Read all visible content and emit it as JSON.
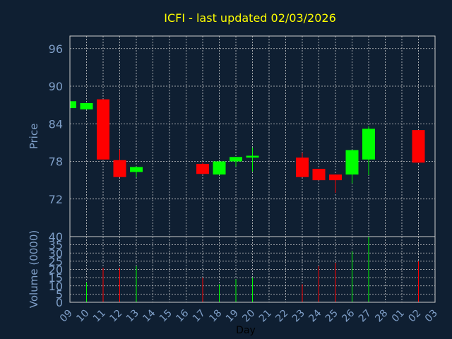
{
  "colors": {
    "background": "#0f1f32",
    "title": "#ffff00",
    "axis_text": "#7f9fc8",
    "frame": "#cccccc",
    "grid": "#cccccc",
    "up": "#00ff00",
    "down": "#ff0000",
    "day_label": "#000000"
  },
  "chart_data": [
    {
      "type": "candlestick",
      "title": "ICFI - last updated 02/03/2026",
      "xlabel": "Day",
      "ylabel": "Price",
      "ylim": [
        66,
        98
      ],
      "yticks": [
        96,
        90,
        84,
        78,
        72
      ],
      "grid": true,
      "x_tick_labels": [
        "09",
        "10",
        "11",
        "12",
        "13",
        "14",
        "15",
        "16",
        "17",
        "18",
        "19",
        "20",
        "21",
        "22",
        "23",
        "24",
        "25",
        "26",
        "27",
        "28",
        "01",
        "02",
        "03"
      ],
      "candles": [
        {
          "day": "09",
          "open": 86.5,
          "close": 87.6,
          "high": 87.6,
          "low": 86.5
        },
        {
          "day": "10",
          "open": 86.3,
          "close": 87.3,
          "high": 87.3,
          "low": 86.3
        },
        {
          "day": "11",
          "open": 87.9,
          "close": 78.3,
          "high": 87.9,
          "low": 78.3
        },
        {
          "day": "12",
          "open": 78.2,
          "close": 75.5,
          "high": 79.9,
          "low": 75.5
        },
        {
          "day": "13",
          "open": 76.3,
          "close": 77.1,
          "high": 77.2,
          "low": 75.5
        },
        {
          "day": "17",
          "open": 77.6,
          "close": 76.0,
          "high": 77.8,
          "low": 76.0
        },
        {
          "day": "18",
          "open": 75.9,
          "close": 78.0,
          "high": 78.0,
          "low": 75.9
        },
        {
          "day": "19",
          "open": 78.0,
          "close": 78.7,
          "high": 78.7,
          "low": 77.2
        },
        {
          "day": "20",
          "open": 78.6,
          "close": 78.9,
          "high": 80.2,
          "low": 76.4
        },
        {
          "day": "23",
          "open": 78.6,
          "close": 75.5,
          "high": 79.4,
          "low": 75.5
        },
        {
          "day": "24",
          "open": 76.8,
          "close": 75.0,
          "high": 76.8,
          "low": 75.0
        },
        {
          "day": "25",
          "open": 75.9,
          "close": 75.0,
          "high": 75.9,
          "low": 73.0
        },
        {
          "day": "26",
          "open": 75.9,
          "close": 79.8,
          "high": 79.8,
          "low": 74.5
        },
        {
          "day": "27",
          "open": 78.3,
          "close": 83.2,
          "high": 83.6,
          "low": 75.8
        },
        {
          "day": "02",
          "open": 83.0,
          "close": 77.8,
          "high": 83.0,
          "low": 77.8
        }
      ]
    },
    {
      "type": "bar",
      "xlabel": "Day",
      "ylabel": "Volume (0000)",
      "ylim": [
        0,
        40
      ],
      "yticks": [
        40,
        35,
        30,
        25,
        20,
        15,
        10,
        5,
        0
      ],
      "grid": true,
      "categories": [
        "10",
        "11",
        "12",
        "13",
        "17",
        "18",
        "19",
        "20",
        "23",
        "24",
        "25",
        "26",
        "27",
        "02"
      ],
      "values": [
        12,
        21,
        21,
        22,
        15,
        11,
        14,
        15,
        11,
        22,
        24,
        31,
        40,
        25
      ],
      "directions": [
        "up",
        "down",
        "down",
        "up",
        "down",
        "up",
        "up",
        "up",
        "down",
        "down",
        "down",
        "up",
        "up",
        "down"
      ]
    }
  ]
}
